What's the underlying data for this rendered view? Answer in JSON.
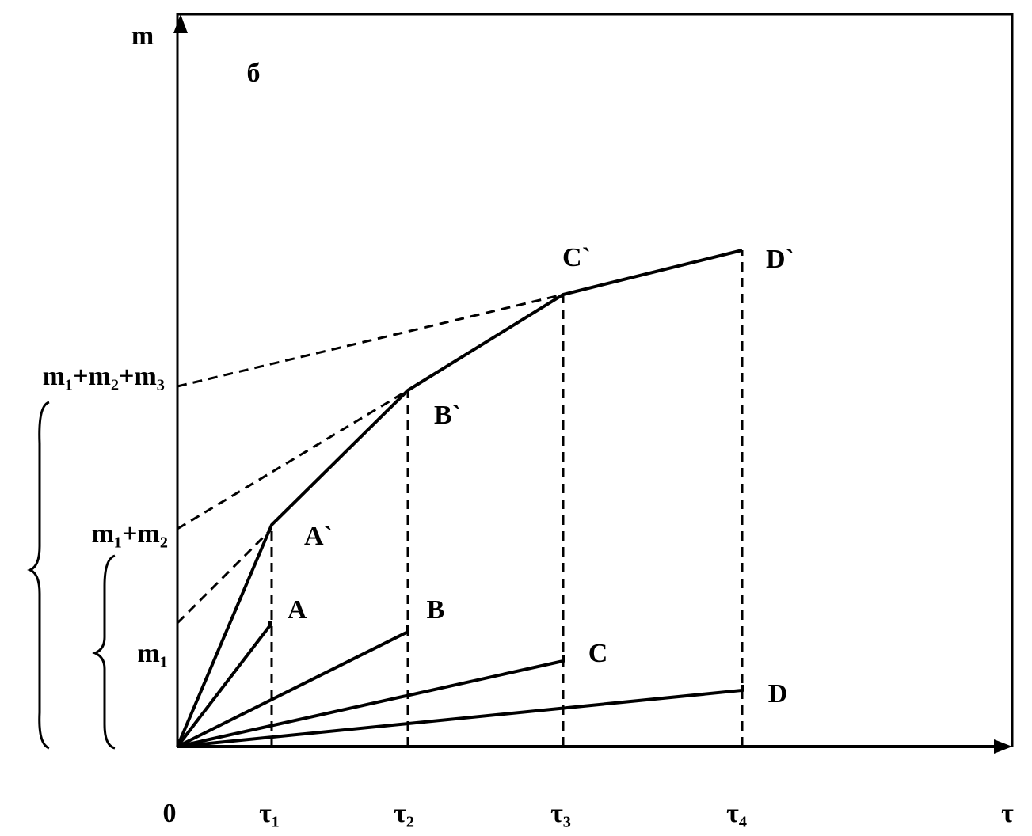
{
  "panel": "б",
  "axes": {
    "y": "m",
    "x": "τ",
    "origin": "0"
  },
  "x_ticks": [
    "τ₁",
    "τ₂",
    "τ₃",
    "τ₄"
  ],
  "y_labels": [
    "m₁",
    "m₁+m₂",
    "m₁+m₂+m₃"
  ],
  "points": {
    "lower": [
      "A",
      "B",
      "C",
      "D"
    ],
    "upper": [
      "A`",
      "B`",
      "C`",
      "D`"
    ]
  }
}
